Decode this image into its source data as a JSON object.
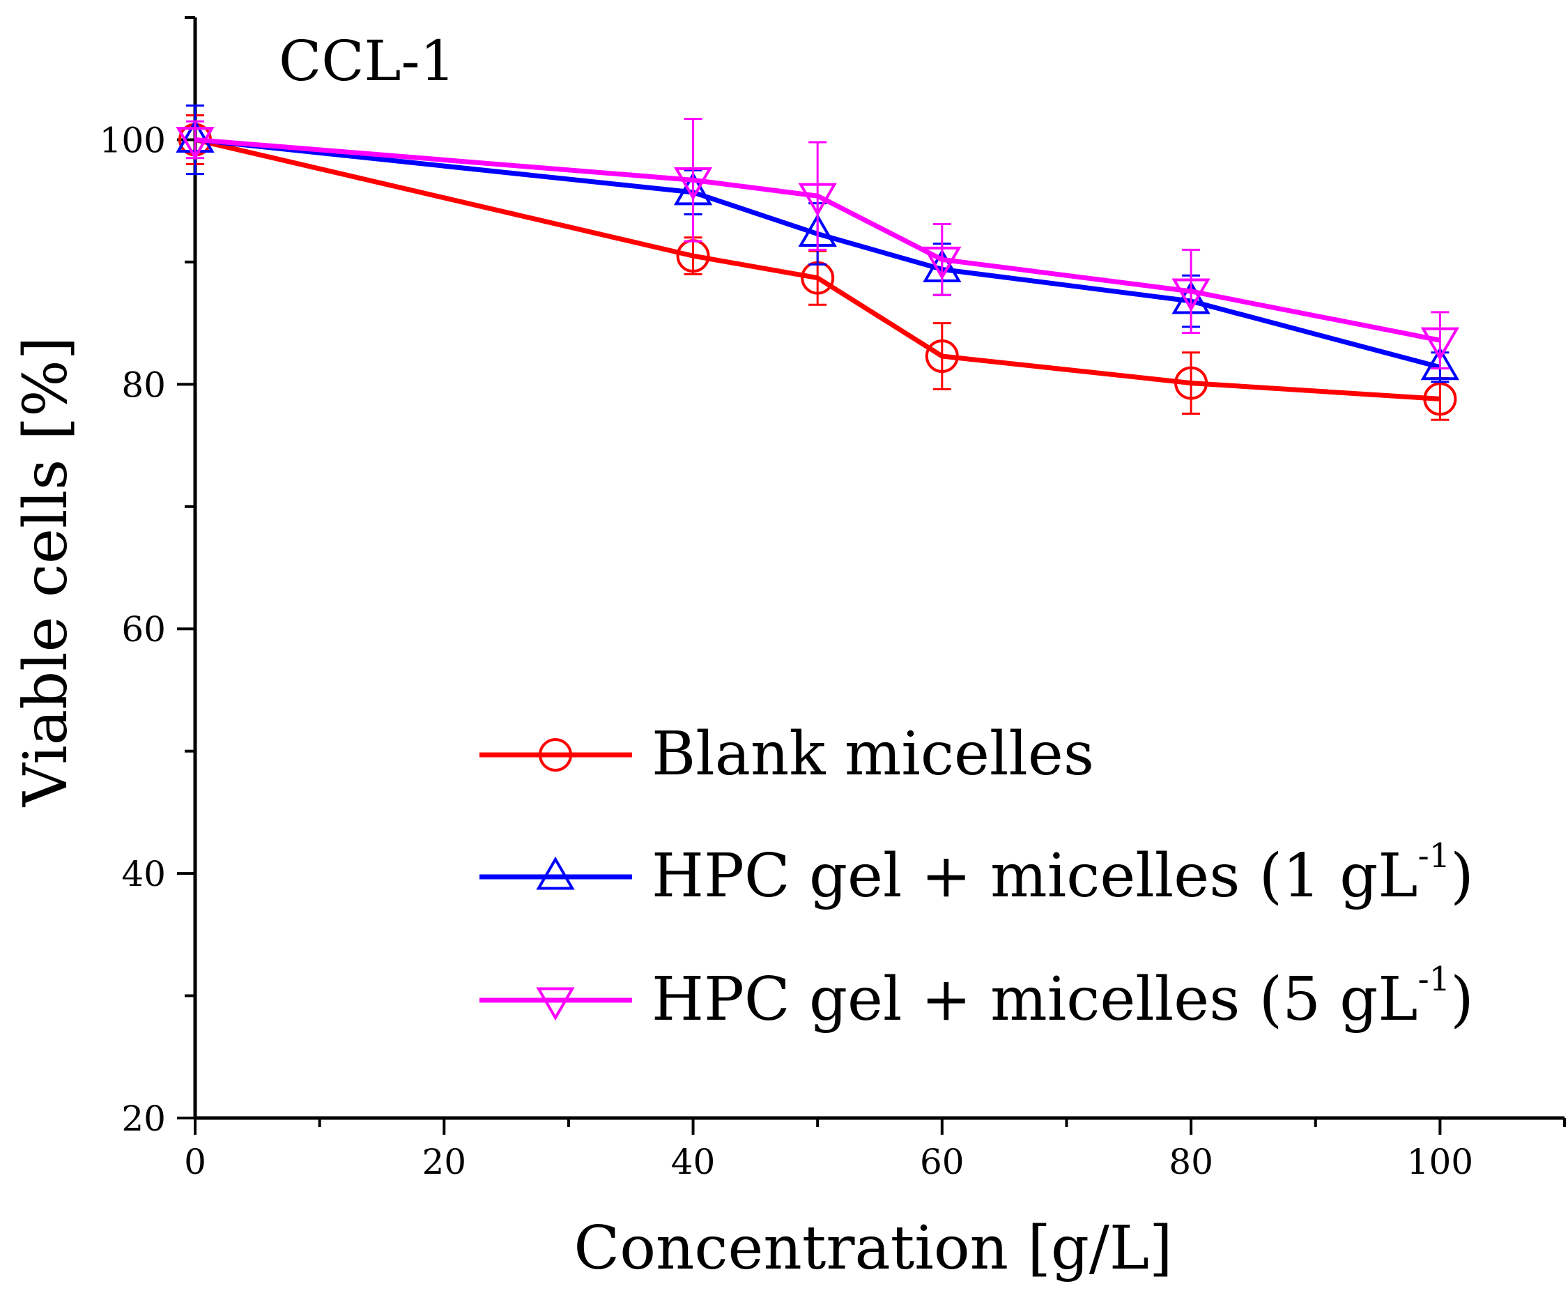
{
  "chart_data": {
    "type": "line",
    "panel_label": "CCL-1",
    "xlabel": "Concentration [g/L]",
    "ylabel": "Viable cells [%]",
    "xlim": [
      0,
      110
    ],
    "ylim": [
      20,
      110
    ],
    "x_ticks": [
      "0",
      "20",
      "40",
      "60",
      "80",
      "100"
    ],
    "y_ticks": [
      "20",
      "40",
      "60",
      "80",
      "100"
    ],
    "x": [
      0,
      40,
      50,
      60,
      80,
      100
    ],
    "series": [
      {
        "name": "Blank micelles",
        "color": "#ff0000",
        "marker": "circle",
        "values": [
          100,
          90.5,
          88.7,
          82.3,
          80.1,
          78.8
        ],
        "errors": [
          2.0,
          1.5,
          2.2,
          2.7,
          2.5,
          1.7
        ]
      },
      {
        "name": "HPC gel + micelles (1 gL",
        "name_sup": "-1",
        "name_suffix": ")",
        "color": "#0000ff",
        "marker": "triangle-up",
        "values": [
          100,
          95.7,
          92.3,
          89.4,
          86.8,
          81.4
        ],
        "errors": [
          2.8,
          1.8,
          2.5,
          2.1,
          2.1,
          1.2
        ]
      },
      {
        "name": "HPC gel + micelles (5 gL",
        "name_sup": "-1",
        "name_suffix": ")",
        "color": "#ff00ff",
        "marker": "triangle-down",
        "values": [
          100,
          96.7,
          95.4,
          90.2,
          87.6,
          83.6
        ],
        "errors": [
          1.5,
          5.0,
          4.4,
          2.9,
          3.4,
          2.3
        ]
      }
    ],
    "legend_position": "lower-right",
    "grid": false
  }
}
